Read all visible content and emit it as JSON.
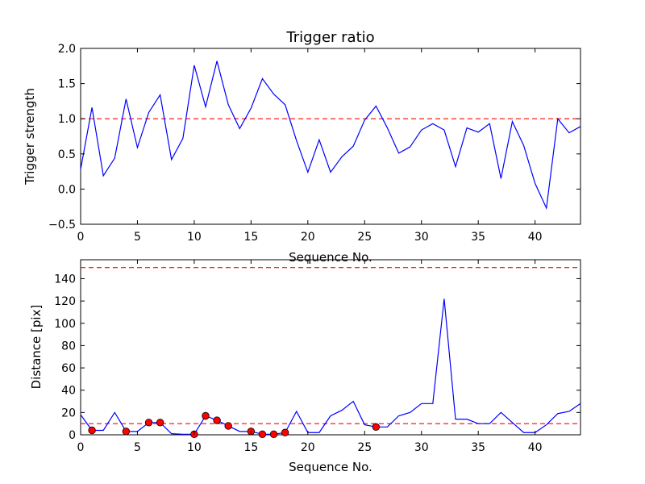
{
  "chart_data": [
    {
      "type": "line",
      "title": "Trigger ratio",
      "xlabel": "Sequence No.",
      "ylabel": "Trigger strength",
      "xlim": [
        0,
        44
      ],
      "ylim": [
        -0.5,
        2.0
      ],
      "xticks": [
        0,
        5,
        10,
        15,
        20,
        25,
        30,
        35,
        40
      ],
      "yticks": [
        -0.5,
        0.0,
        0.5,
        1.0,
        1.5,
        2.0
      ],
      "ytick_labels": [
        "−0.5",
        "0.0",
        "0.5",
        "1.0",
        "1.5",
        "2.0"
      ],
      "grid": false,
      "series": [
        {
          "name": "trigger strength",
          "color": "#0000ff",
          "x": [
            0,
            1,
            2,
            3,
            4,
            5,
            6,
            7,
            8,
            9,
            10,
            11,
            12,
            13,
            14,
            15,
            16,
            17,
            18,
            19,
            20,
            21,
            22,
            23,
            24,
            25,
            26,
            27,
            28,
            29,
            30,
            31,
            32,
            33,
            34,
            35,
            36,
            37,
            38,
            39,
            40,
            41,
            42,
            43,
            44
          ],
          "values": [
            0.28,
            1.16,
            0.19,
            0.44,
            1.28,
            0.59,
            1.09,
            1.34,
            0.42,
            0.72,
            1.76,
            1.17,
            1.82,
            1.2,
            0.86,
            1.15,
            1.57,
            1.35,
            1.2,
            0.69,
            0.24,
            0.7,
            0.24,
            0.46,
            0.61,
            0.98,
            1.18,
            0.87,
            0.51,
            0.6,
            0.84,
            0.93,
            0.84,
            0.32,
            0.87,
            0.81,
            0.93,
            0.15,
            0.96,
            0.62,
            0.08,
            -0.27,
            1.0,
            0.8,
            0.89
          ]
        }
      ],
      "reference_lines": [
        {
          "y": 1.0,
          "color": "#ff0000",
          "style": "dashed"
        }
      ]
    },
    {
      "type": "line",
      "title": "",
      "xlabel": "Sequence No.",
      "ylabel": "Distance [pix]",
      "xlim": [
        0,
        44
      ],
      "ylim": [
        0,
        157
      ],
      "xticks": [
        0,
        5,
        10,
        15,
        20,
        25,
        30,
        35,
        40
      ],
      "yticks": [
        0,
        20,
        40,
        60,
        80,
        100,
        120,
        140
      ],
      "ytick_labels": [
        "0",
        "20",
        "40",
        "60",
        "80",
        "100",
        "120",
        "140"
      ],
      "grid": false,
      "series": [
        {
          "name": "distance",
          "color": "#0000ff",
          "x": [
            0,
            1,
            2,
            3,
            4,
            5,
            6,
            7,
            8,
            9,
            10,
            11,
            12,
            13,
            14,
            15,
            16,
            17,
            18,
            19,
            20,
            21,
            22,
            23,
            24,
            25,
            26,
            27,
            28,
            29,
            30,
            31,
            32,
            33,
            34,
            35,
            36,
            37,
            38,
            39,
            40,
            41,
            42,
            43,
            44
          ],
          "values": [
            18,
            4,
            4,
            20,
            3,
            3,
            11,
            11,
            1,
            0.5,
            0.5,
            17,
            13,
            8,
            3,
            3,
            0.5,
            0.5,
            2,
            21,
            2,
            2,
            17,
            22,
            30,
            9,
            7,
            7,
            17,
            20,
            28,
            28,
            122,
            14,
            14,
            10,
            10,
            20,
            11,
            2,
            2,
            9,
            19,
            21,
            28
          ]
        },
        {
          "name": "highlighted points",
          "color": "#ff0000",
          "marker": "circle",
          "x": [
            1,
            4,
            6,
            7,
            10,
            11,
            12,
            13,
            15,
            16,
            17,
            18,
            26
          ],
          "values": [
            4,
            3,
            11,
            11,
            0.5,
            17,
            13,
            8,
            3,
            0.5,
            0.5,
            2,
            7
          ]
        }
      ],
      "reference_lines": [
        {
          "y": 150,
          "color": "#ff0000",
          "style": "dashed"
        },
        {
          "y": 10,
          "color": "#ff0000",
          "style": "dashed"
        }
      ]
    }
  ]
}
